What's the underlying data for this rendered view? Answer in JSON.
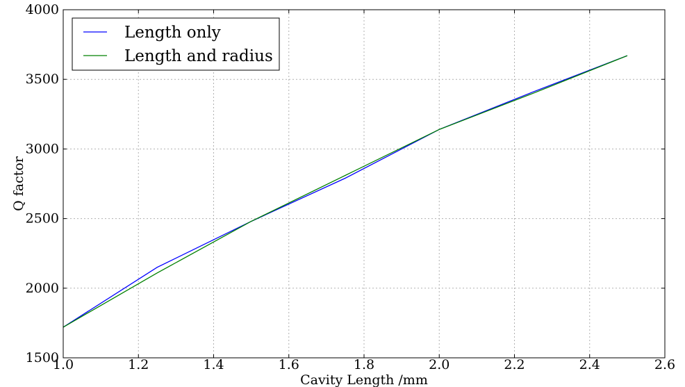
{
  "chart_data": {
    "type": "line",
    "title": "",
    "xlabel": "Cavity Length /mm",
    "ylabel": "Q factor",
    "xlim": [
      1.0,
      2.6
    ],
    "ylim": [
      1500,
      4000
    ],
    "xticks": [
      1.0,
      1.2,
      1.4,
      1.6,
      1.8,
      2.0,
      2.2,
      2.4,
      2.6
    ],
    "xtick_labels": [
      "1.0",
      "1.2",
      "1.4",
      "1.6",
      "1.8",
      "2.0",
      "2.2",
      "2.4",
      "2.6"
    ],
    "yticks": [
      1500,
      2000,
      2500,
      3000,
      3500,
      4000
    ],
    "ytick_labels": [
      "1500",
      "2000",
      "2500",
      "3000",
      "3500",
      "4000"
    ],
    "grid": true,
    "legend_position": "top-left",
    "series": [
      {
        "name": "Length only",
        "color": "#0000ff",
        "x": [
          1.0,
          1.25,
          1.5,
          1.75,
          2.0,
          2.25,
          2.5
        ],
        "y": [
          1720,
          2150,
          2480,
          2790,
          3140,
          3410,
          3670
        ]
      },
      {
        "name": "Length and radius",
        "color": "#008000",
        "x": [
          1.0,
          1.25,
          1.5,
          1.75,
          2.0,
          2.25,
          2.5
        ],
        "y": [
          1720,
          2110,
          2480,
          2810,
          3140,
          3400,
          3670
        ]
      }
    ]
  }
}
